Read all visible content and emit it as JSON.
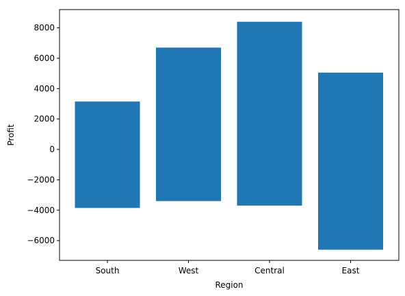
{
  "chart_data": {
    "type": "bar",
    "title": "",
    "xlabel": "Region",
    "ylabel": "Profit",
    "categories": [
      "South",
      "West",
      "Central",
      "East"
    ],
    "bottoms": [
      -3850,
      -3400,
      -3700,
      -6600
    ],
    "tops": [
      3150,
      6700,
      8400,
      5050
    ],
    "ylim": [
      -7300,
      9200
    ],
    "yticks": [
      -6000,
      -4000,
      -2000,
      0,
      2000,
      4000,
      6000,
      8000
    ],
    "ytick_labels": [
      "−6000",
      "−4000",
      "−2000",
      "0",
      "2000",
      "4000",
      "6000",
      "8000"
    ],
    "grid": false,
    "legend": "none",
    "bar_color": "#1f77b4"
  }
}
